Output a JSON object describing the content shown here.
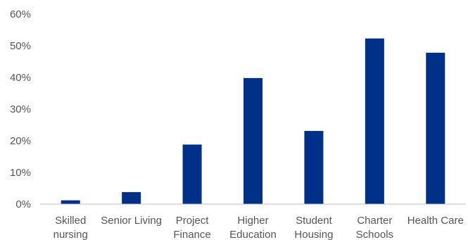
{
  "chart_data": {
    "type": "bar",
    "categories": [
      [
        "Skilled",
        "nursing"
      ],
      [
        "Senior Living"
      ],
      [
        "Project",
        "Finance"
      ],
      [
        "Higher",
        "Education"
      ],
      [
        "Student",
        "Housing"
      ],
      [
        "Charter",
        "Schools"
      ],
      [
        "Health Care"
      ]
    ],
    "values": [
      1.2,
      3.8,
      18.8,
      39.8,
      23.1,
      52.3,
      47.8
    ],
    "y_ticks": [
      "0%",
      "10%",
      "20%",
      "30%",
      "40%",
      "50%",
      "60%"
    ],
    "ylim": [
      0,
      60
    ],
    "grid": false,
    "bar_color": "#003087",
    "axis_color": "#bfbfbf",
    "title": "",
    "xlabel": "",
    "ylabel": ""
  }
}
